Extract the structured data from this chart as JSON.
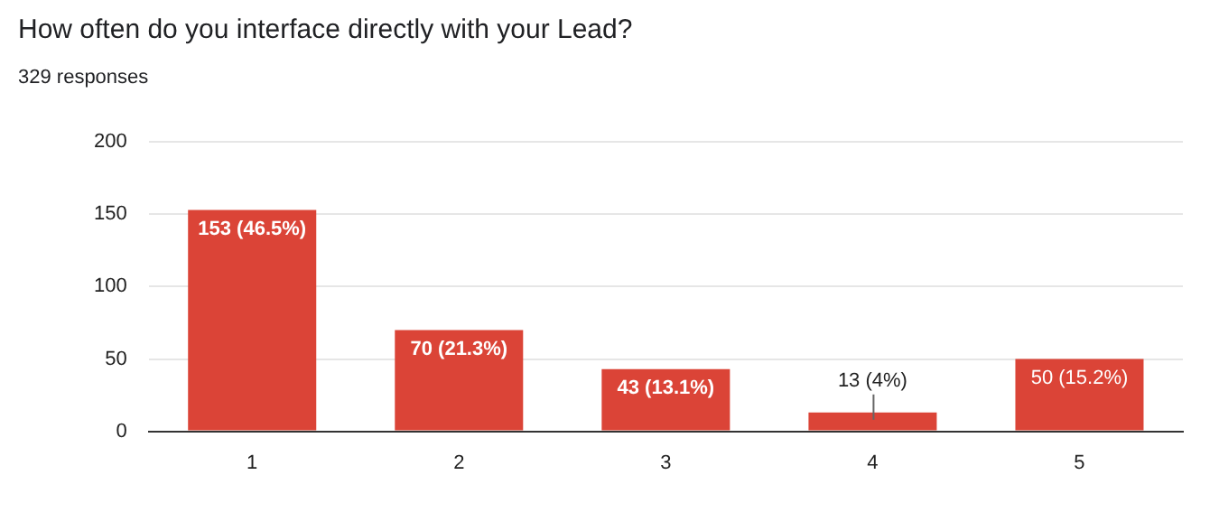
{
  "chart_data": {
    "type": "bar",
    "title": "How often do you interface directly with your Lead?",
    "subtitle": "329 responses",
    "categories": [
      "1",
      "2",
      "3",
      "4",
      "5"
    ],
    "values": [
      153,
      70,
      43,
      13,
      50
    ],
    "value_labels": [
      "153 (46.5%)",
      "70 (21.3%)",
      "43 (13.1%)",
      "13 (4%)",
      "50 (15.2%)"
    ],
    "color": "#db4437",
    "ylim": [
      0,
      200
    ],
    "yticks": [
      0,
      50,
      100,
      150,
      200
    ],
    "grid": "y",
    "legend": false
  }
}
